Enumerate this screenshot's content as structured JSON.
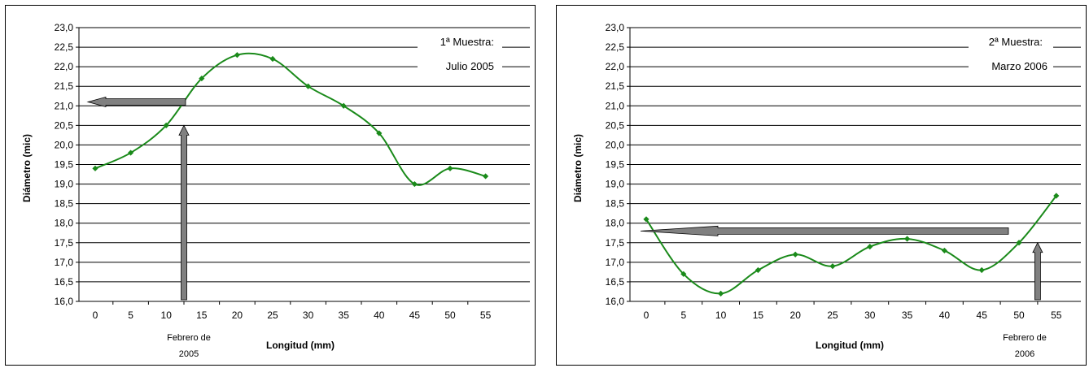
{
  "chart_data": [
    {
      "type": "line",
      "sample_label_line1": "1ª Muestra:",
      "sample_label_line2": "Julio 2005",
      "xlabel": "Longitud (mm)",
      "ylabel": "Diámetro (mic)",
      "x": [
        0,
        5,
        10,
        15,
        20,
        25,
        30,
        35,
        40,
        45,
        50,
        55
      ],
      "categories": [
        "0",
        "5",
        "10",
        "15",
        "20",
        "25",
        "30",
        "35",
        "40",
        "45",
        "50",
        "55"
      ],
      "values": [
        19.4,
        19.8,
        20.5,
        21.7,
        22.3,
        22.2,
        21.5,
        21.0,
        20.3,
        19.0,
        19.4,
        19.2
      ],
      "ylim": [
        16.0,
        23.0
      ],
      "yticks": [
        "16,0",
        "16,5",
        "17,0",
        "17,5",
        "18,0",
        "18,5",
        "19,0",
        "19,5",
        "20,0",
        "20,5",
        "21,0",
        "21,5",
        "22,0",
        "22,5",
        "23,0"
      ],
      "annotation_line1": "Febrero de",
      "annotation_line2": "2005",
      "marker_x": 12.5,
      "h_arrow_y": 21.1,
      "series_color": "#1a8a1a",
      "grid": true
    },
    {
      "type": "line",
      "sample_label_line1": "2ª Muestra:",
      "sample_label_line2": "Marzo 2006",
      "xlabel": "Longitud (mm)",
      "ylabel": "Diámetro (mic)",
      "x": [
        0,
        5,
        10,
        15,
        20,
        25,
        30,
        35,
        40,
        45,
        50,
        55
      ],
      "categories": [
        "0",
        "5",
        "10",
        "15",
        "20",
        "25",
        "30",
        "35",
        "40",
        "45",
        "50",
        "55"
      ],
      "values": [
        18.1,
        16.7,
        16.2,
        16.8,
        17.2,
        16.9,
        17.4,
        17.6,
        17.3,
        16.8,
        17.5,
        18.7
      ],
      "ylim": [
        16.0,
        23.0
      ],
      "yticks": [
        "16,0",
        "16,5",
        "17,0",
        "17,5",
        "18,0",
        "18,5",
        "19,0",
        "19,5",
        "20,0",
        "20,5",
        "21,0",
        "21,5",
        "22,0",
        "22,5",
        "23,0"
      ],
      "annotation_line1": "Febrero de",
      "annotation_line2": "2006",
      "marker_x": 52.5,
      "h_arrow_y": 17.8,
      "series_color": "#1a8a1a",
      "grid": true
    }
  ]
}
